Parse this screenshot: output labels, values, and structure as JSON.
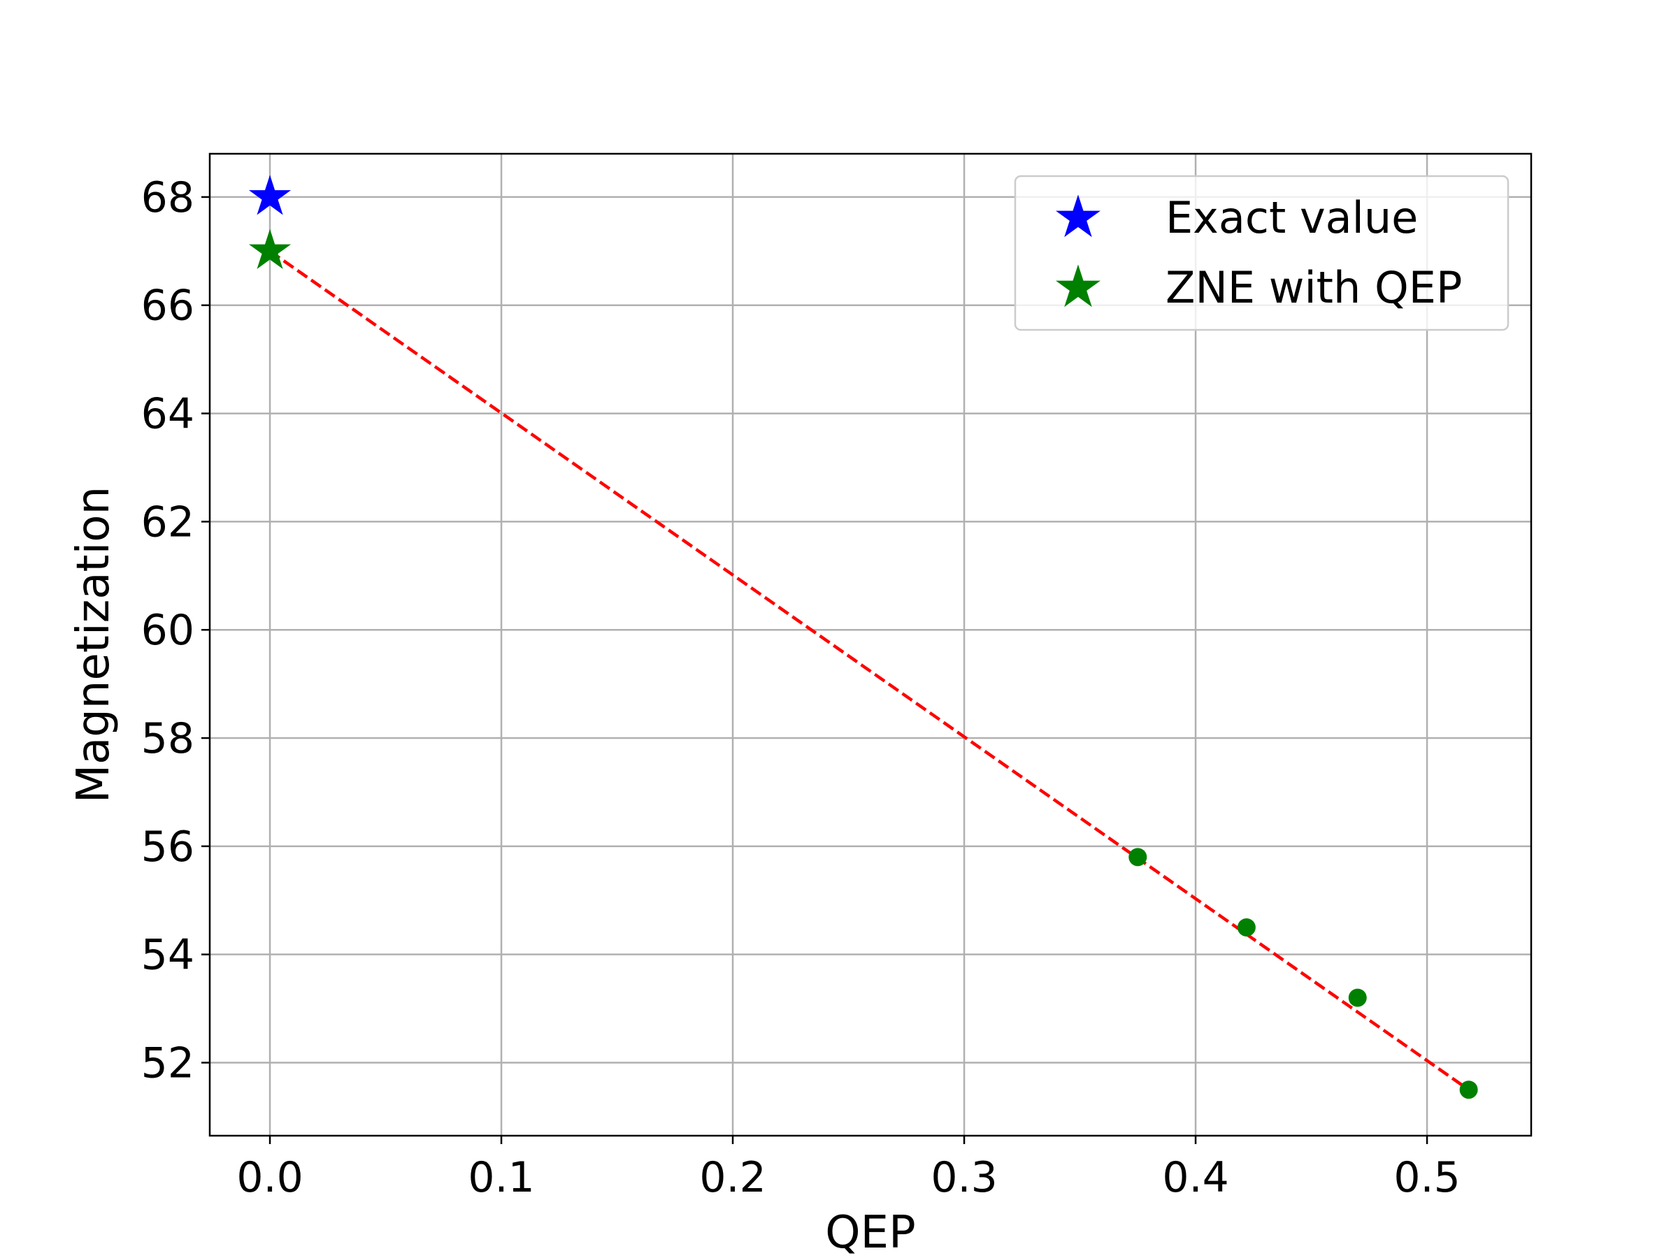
{
  "chart_data": {
    "type": "scatter",
    "xlabel": "QEP",
    "ylabel": "Magnetization",
    "xlim": [
      -0.026,
      0.545
    ],
    "ylim": [
      50.65,
      68.8
    ],
    "xticks": [
      "0.0",
      "0.1",
      "0.2",
      "0.3",
      "0.4",
      "0.5"
    ],
    "xtick_values": [
      0.0,
      0.1,
      0.2,
      0.3,
      0.4,
      0.5
    ],
    "yticks": [
      "52",
      "54",
      "56",
      "58",
      "60",
      "62",
      "64",
      "66",
      "68"
    ],
    "ytick_values": [
      52,
      54,
      56,
      58,
      60,
      62,
      64,
      66,
      68
    ],
    "grid": true,
    "legend_position": "top-right",
    "series": [
      {
        "name": "Exact value",
        "marker": "star",
        "color": "#0000ff",
        "points": [
          {
            "x": 0.0,
            "y": 68.0
          }
        ]
      },
      {
        "name": "ZNE with QEP",
        "marker": "star",
        "color": "#008000",
        "points": [
          {
            "x": 0.0,
            "y": 67.0
          }
        ]
      },
      {
        "marker": "circle",
        "color": "#008000",
        "points": [
          {
            "x": 0.375,
            "y": 55.8
          },
          {
            "x": 0.422,
            "y": 54.5
          },
          {
            "x": 0.47,
            "y": 53.2
          },
          {
            "x": 0.518,
            "y": 51.5
          }
        ]
      }
    ],
    "fit_line": {
      "color": "#ff0000",
      "style": "dashed",
      "points": [
        {
          "x": 0.0,
          "y": 67.0
        },
        {
          "x": 0.518,
          "y": 51.5
        }
      ]
    }
  }
}
